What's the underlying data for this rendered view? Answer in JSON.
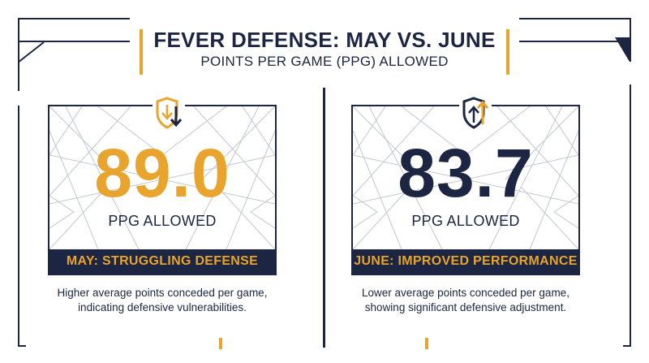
{
  "header": {
    "title": "FEVER DEFENSE: MAY VS. JUNE",
    "subtitle": "POINTS PER GAME (PPG) ALLOWED"
  },
  "may": {
    "value": "89.0",
    "unit": "PPG ALLOWED",
    "banner": "MAY: STRUGGLING DEFENSE",
    "description_line1": "Higher average points conceded per game,",
    "description_line2": "indicating defensive vulnerabilities.",
    "icon": "shield-down-arrow-icon"
  },
  "june": {
    "value": "83.7",
    "unit": "PPG ALLOWED",
    "banner": "JUNE: IMPROVED PERFORMANCE",
    "description_line1": "Lower average points conceded per game,",
    "description_line2": "showing significant defensive adjustment.",
    "icon": "shield-up-arrow-icon"
  },
  "colors": {
    "navy": "#1c2541",
    "gold": "#e8a42c",
    "line_gray": "#c3c7d0"
  }
}
